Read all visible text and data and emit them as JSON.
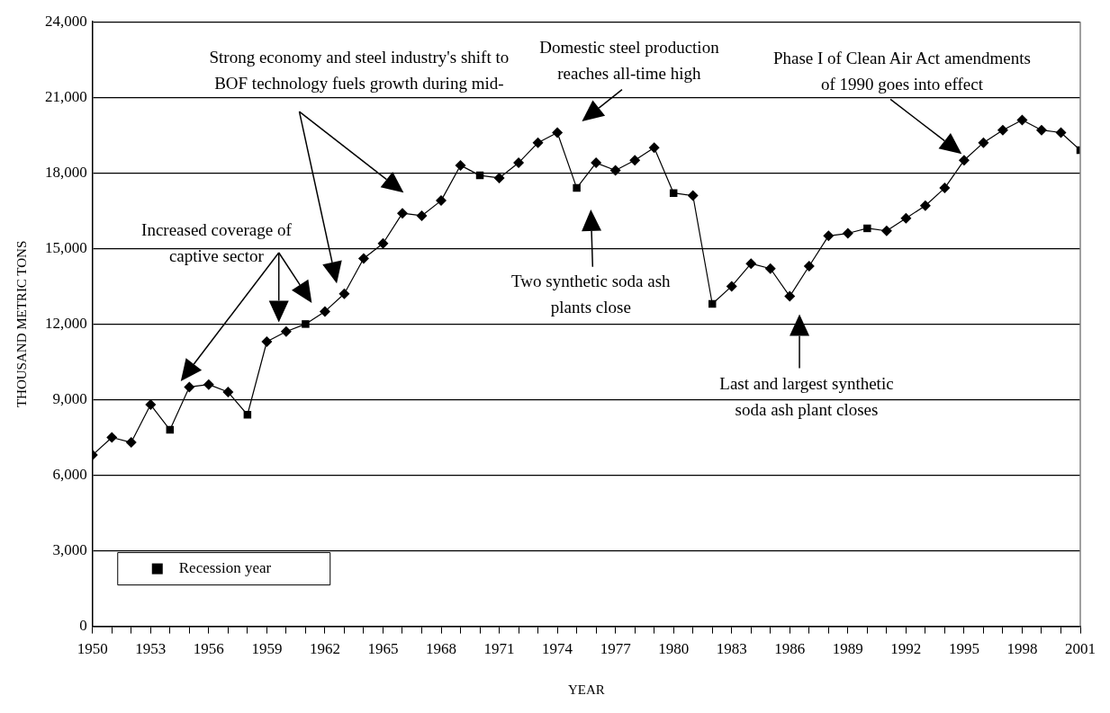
{
  "chart_data": {
    "type": "line",
    "xlabel": "YEAR",
    "ylabel": "THOUSAND METRIC TONS",
    "x": [
      1950,
      1951,
      1952,
      1953,
      1954,
      1955,
      1956,
      1957,
      1958,
      1959,
      1960,
      1961,
      1962,
      1963,
      1964,
      1965,
      1966,
      1967,
      1968,
      1969,
      1970,
      1971,
      1972,
      1973,
      1974,
      1975,
      1976,
      1977,
      1978,
      1979,
      1980,
      1981,
      1982,
      1983,
      1984,
      1985,
      1986,
      1987,
      1988,
      1989,
      1990,
      1991,
      1992,
      1993,
      1994,
      1995,
      1996,
      1997,
      1998,
      1999,
      2000,
      2001
    ],
    "series": [
      {
        "color": "#000000",
        "marker": "diamond",
        "values": [
          6800,
          7500,
          7300,
          8800,
          7800,
          9500,
          9600,
          9300,
          8400,
          11300,
          11700,
          12000,
          12500,
          13200,
          14600,
          15200,
          16400,
          16300,
          16900,
          18300,
          17900,
          17800,
          18400,
          19200,
          19600,
          17400,
          18400,
          18100,
          18500,
          19000,
          17200,
          17100,
          12800,
          13500,
          14400,
          14200,
          13100,
          14300,
          15500,
          15600,
          15800,
          15700,
          16200,
          16700,
          17400,
          18500,
          19200,
          19700,
          20100,
          19700,
          19600,
          18900
        ]
      },
      {
        "type": "scatter",
        "name": "Recession year",
        "color": "#000000",
        "marker": "square",
        "x": [
          1954,
          1958,
          1961,
          1970,
          1975,
          1980,
          1982,
          1990,
          2001
        ],
        "values": [
          7800,
          8400,
          12000,
          17900,
          17400,
          17200,
          12800,
          15800,
          18900
        ]
      }
    ],
    "xlim": [
      1950,
      2001
    ],
    "xticks": [
      {
        "value": 1950,
        "label": "1950"
      },
      {
        "value": 1951,
        "label": null
      },
      {
        "value": 1952,
        "label": null
      },
      {
        "value": 1953,
        "label": "1953"
      },
      {
        "value": 1954,
        "label": null
      },
      {
        "value": 1955,
        "label": null
      },
      {
        "value": 1956,
        "label": "1956"
      },
      {
        "value": 1957,
        "label": null
      },
      {
        "value": 1958,
        "label": null
      },
      {
        "value": 1959,
        "label": "1959"
      },
      {
        "value": 1960,
        "label": null
      },
      {
        "value": 1961,
        "label": null
      },
      {
        "value": 1962,
        "label": "1962"
      },
      {
        "value": 1963,
        "label": null
      },
      {
        "value": 1964,
        "label": null
      },
      {
        "value": 1965,
        "label": "1965"
      },
      {
        "value": 1966,
        "label": null
      },
      {
        "value": 1967,
        "label": null
      },
      {
        "value": 1968,
        "label": "1968"
      },
      {
        "value": 1969,
        "label": null
      },
      {
        "value": 1970,
        "label": null
      },
      {
        "value": 1971,
        "label": "1971"
      },
      {
        "value": 1972,
        "label": null
      },
      {
        "value": 1973,
        "label": null
      },
      {
        "value": 1974,
        "label": "1974"
      },
      {
        "value": 1975,
        "label": null
      },
      {
        "value": 1976,
        "label": null
      },
      {
        "value": 1977,
        "label": "1977"
      },
      {
        "value": 1978,
        "label": null
      },
      {
        "value": 1979,
        "label": null
      },
      {
        "value": 1980,
        "label": "1980"
      },
      {
        "value": 1981,
        "label": null
      },
      {
        "value": 1982,
        "label": null
      },
      {
        "value": 1983,
        "label": "1983"
      },
      {
        "value": 1984,
        "label": null
      },
      {
        "value": 1985,
        "label": null
      },
      {
        "value": 1986,
        "label": "1986"
      },
      {
        "value": 1987,
        "label": null
      },
      {
        "value": 1988,
        "label": null
      },
      {
        "value": 1989,
        "label": "1989"
      },
      {
        "value": 1990,
        "label": null
      },
      {
        "value": 1991,
        "label": null
      },
      {
        "value": 1992,
        "label": "1992"
      },
      {
        "value": 1993,
        "label": null
      },
      {
        "value": 1994,
        "label": null
      },
      {
        "value": 1995,
        "label": "1995"
      },
      {
        "value": 1996,
        "label": null
      },
      {
        "value": 1997,
        "label": null
      },
      {
        "value": 1998,
        "label": "1998"
      },
      {
        "value": 1999,
        "label": null
      },
      {
        "value": 2000,
        "label": null
      },
      {
        "value": 2001,
        "label": "2001"
      }
    ],
    "ylim": [
      0,
      24000
    ],
    "yticks": [
      {
        "value": 0,
        "label": "0"
      },
      {
        "value": 3000,
        "label": "3,000"
      },
      {
        "value": 6000,
        "label": "6,000"
      },
      {
        "value": 9000,
        "label": "9,000"
      },
      {
        "value": 12000,
        "label": "12,000"
      },
      {
        "value": 15000,
        "label": "15,000"
      },
      {
        "value": 18000,
        "label": "18,000"
      },
      {
        "value": 21000,
        "label": "21,000"
      },
      {
        "value": 24000,
        "label": "24,000"
      }
    ],
    "grid": "y",
    "legend": "bottom left",
    "annotations": [
      "Increased coverage of\ncaptive sector",
      "Strong economy and steel industry's shift to\nBOF technology fuels growth during mid-",
      "Domestic steel production\nreaches all-time high",
      "Two synthetic soda ash\nplants close",
      "Last and largest synthetic\nsoda ash plant closes",
      "Phase I of Clean Air Act amendments\nof 1990 goes into effect"
    ]
  }
}
